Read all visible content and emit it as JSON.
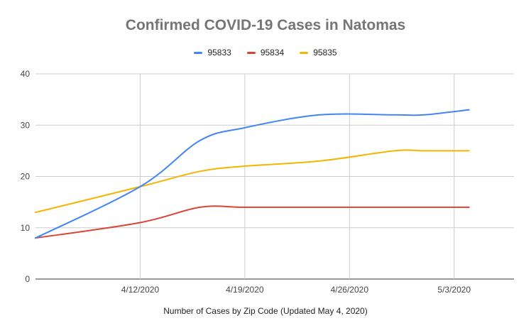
{
  "chart_data": {
    "type": "line",
    "title": "Confirmed COVID-19 Cases in Natomas",
    "xlabel": "Number of Cases by Zip Code (Updated May 4, 2020)",
    "ylabel": "",
    "x": [
      "4/5/2020",
      "4/12/2020",
      "4/16/2020",
      "4/19/2020",
      "4/24/2020",
      "4/29/2020",
      "5/1/2020",
      "5/4/2020"
    ],
    "x_ticks": [
      "4/12/2020",
      "4/19/2020",
      "4/26/2020",
      "5/3/2020"
    ],
    "x_range": [
      "4/5/2020",
      "5/7/2020"
    ],
    "ylim": [
      0,
      40
    ],
    "y_ticks": [
      0,
      10,
      20,
      30,
      40
    ],
    "grid": true,
    "legend_position": "top",
    "series": [
      {
        "name": "95833",
        "color": "#4285F4",
        "values": [
          8,
          18,
          27,
          29.5,
          32,
          32,
          32,
          33
        ]
      },
      {
        "name": "95834",
        "color": "#DB4437",
        "values": [
          8,
          11,
          14,
          14,
          14,
          14,
          14,
          14
        ]
      },
      {
        "name": "95835",
        "color": "#F4B400",
        "values": [
          13,
          18,
          21,
          22,
          23,
          25,
          25,
          25
        ]
      }
    ]
  }
}
